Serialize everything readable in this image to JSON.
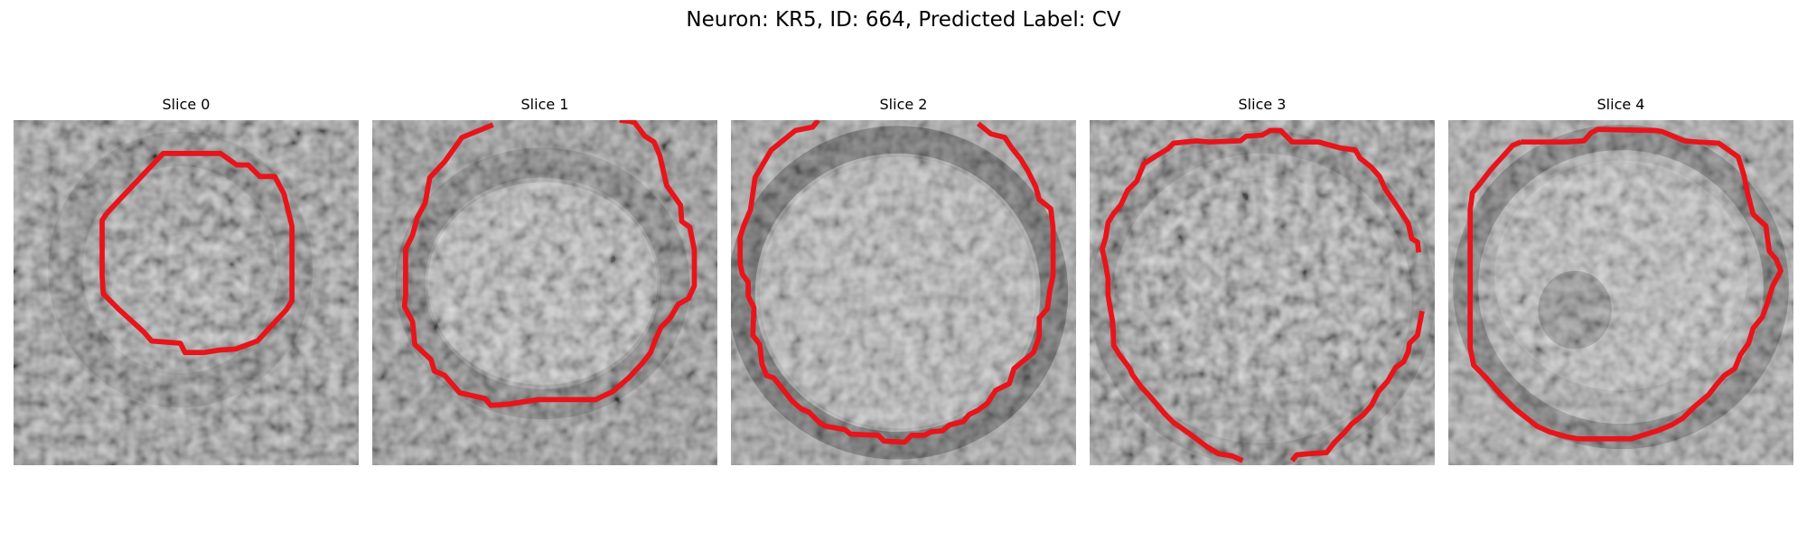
{
  "figure": {
    "title": "Neuron: KR5, ID: 664, Predicted Label: CV"
  },
  "slices": [
    {
      "title": "Slice 0"
    },
    {
      "title": "Slice 1"
    },
    {
      "title": "Slice 2"
    },
    {
      "title": "Slice 3"
    },
    {
      "title": "Slice 4"
    }
  ],
  "colors": {
    "contour": "#e8141a",
    "colormap": "grayscale"
  }
}
